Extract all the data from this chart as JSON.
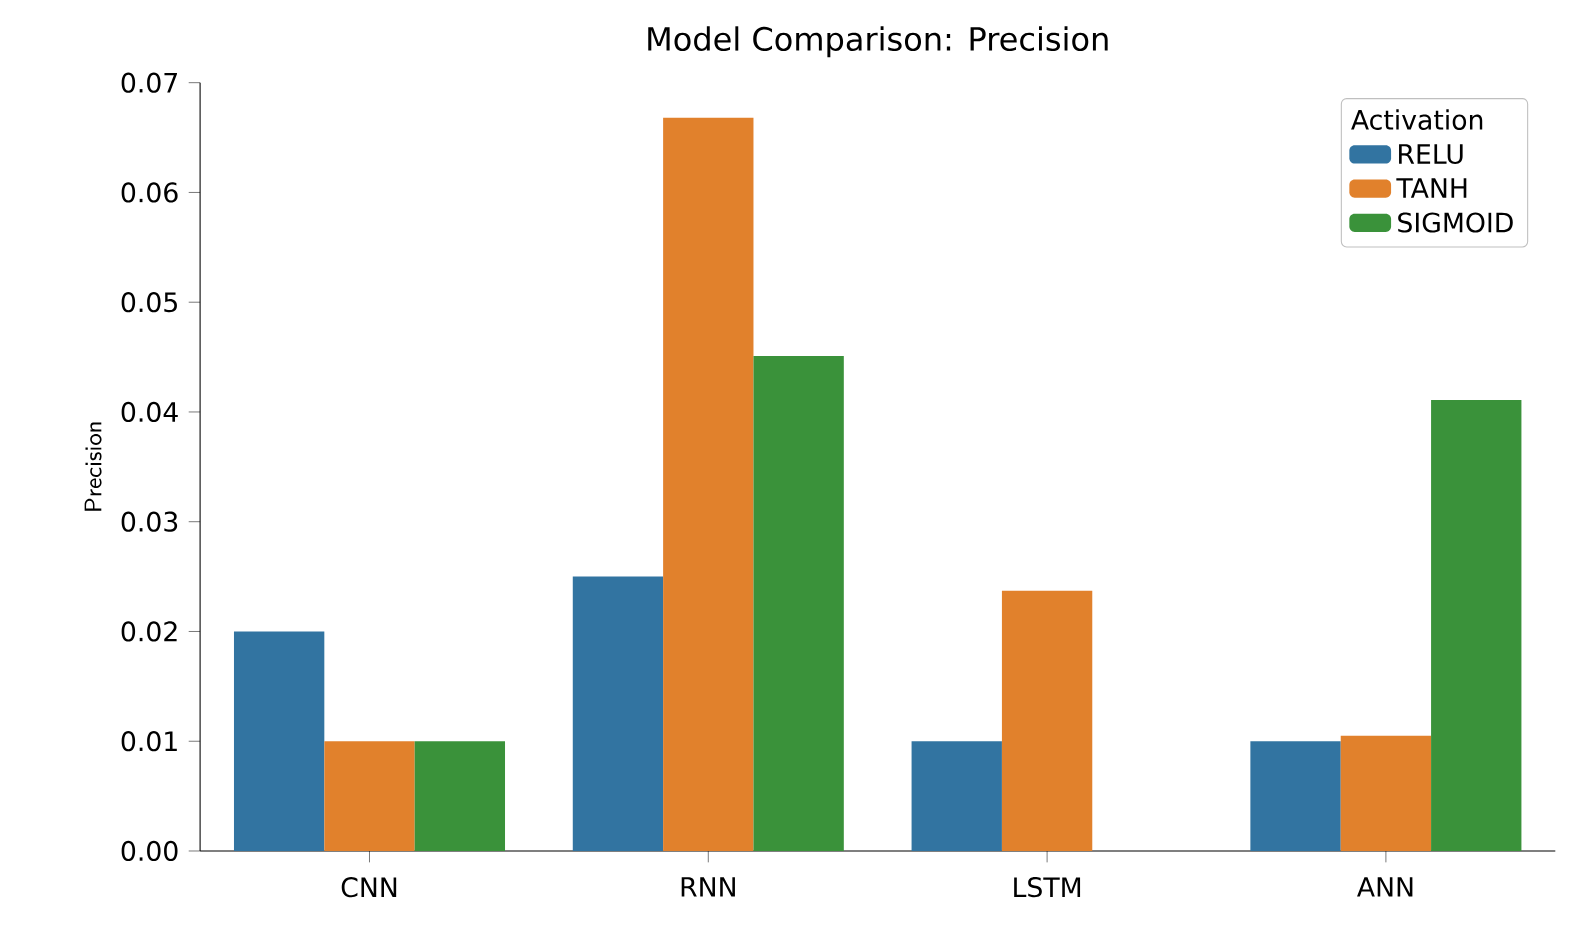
{
  "chart_data": {
    "type": "bar",
    "title": "Model Comparison: Precision",
    "ylabel": "Precision",
    "legend_title": "Activation",
    "categories": [
      "CNN",
      "RNN",
      "LSTM",
      "ANN"
    ],
    "series": [
      {
        "name": "RELU",
        "color": "#3274a1",
        "values": [
          0.02,
          0.025,
          0.01,
          0.01
        ]
      },
      {
        "name": "TANH",
        "color": "#e1812c",
        "values": [
          0.01,
          0.0668,
          0.0237,
          0.0105
        ]
      },
      {
        "name": "SIGMOID",
        "color": "#3a923a",
        "values": [
          0.01,
          0.0451,
          null,
          0.0411
        ]
      }
    ],
    "ylim": [
      0,
      0.07
    ],
    "yticks": [
      {
        "value": 0,
        "label": "0.00"
      },
      0.01,
      0.02,
      0.03,
      0.04,
      0.05,
      0.06,
      0.07
    ],
    "grid": false,
    "legend": "top right"
  }
}
